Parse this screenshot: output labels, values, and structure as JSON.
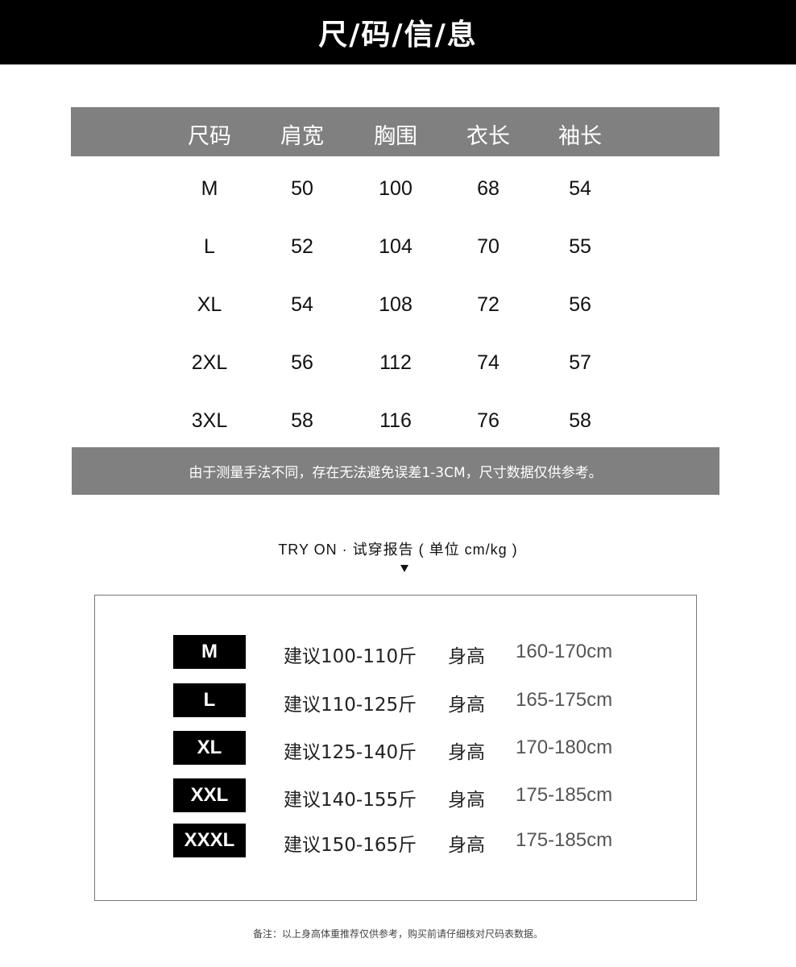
{
  "title": "尺/码/信/息",
  "size_table": {
    "headers": [
      "尺码",
      "肩宽",
      "胸围",
      "衣长",
      "袖长"
    ],
    "rows": [
      [
        "M",
        "50",
        "100",
        "68",
        "54"
      ],
      [
        "L",
        "52",
        "104",
        "70",
        "55"
      ],
      [
        "XL",
        "54",
        "108",
        "72",
        "56"
      ],
      [
        "2XL",
        "56",
        "112",
        "74",
        "57"
      ],
      [
        "3XL",
        "58",
        "116",
        "76",
        "58"
      ]
    ]
  },
  "note": "由于测量手法不同，存在无法避免误差1-3CM，尺寸数据仅供参考。",
  "try_on": {
    "heading": "TRY ON · 试穿报告 ( 单位 cm/kg )",
    "rows": [
      {
        "size": "M",
        "weight": "建议100-110斤",
        "height_label": "身高",
        "height": "160-170cm"
      },
      {
        "size": "L",
        "weight": "建议110-125斤",
        "height_label": "身高",
        "height": "165-175cm"
      },
      {
        "size": "XL",
        "weight": "建议125-140斤",
        "height_label": "身高",
        "height": "170-180cm"
      },
      {
        "size": "XXL",
        "weight": "建议140-155斤",
        "height_label": "身高",
        "height": "175-185cm"
      },
      {
        "size": "XXXL",
        "weight": "建议150-165斤",
        "height_label": "身高",
        "height": "175-185cm"
      }
    ]
  },
  "footer": "备注：以上身高体重推荐仅供参考，购买前请仔细核对尺码表数据。"
}
